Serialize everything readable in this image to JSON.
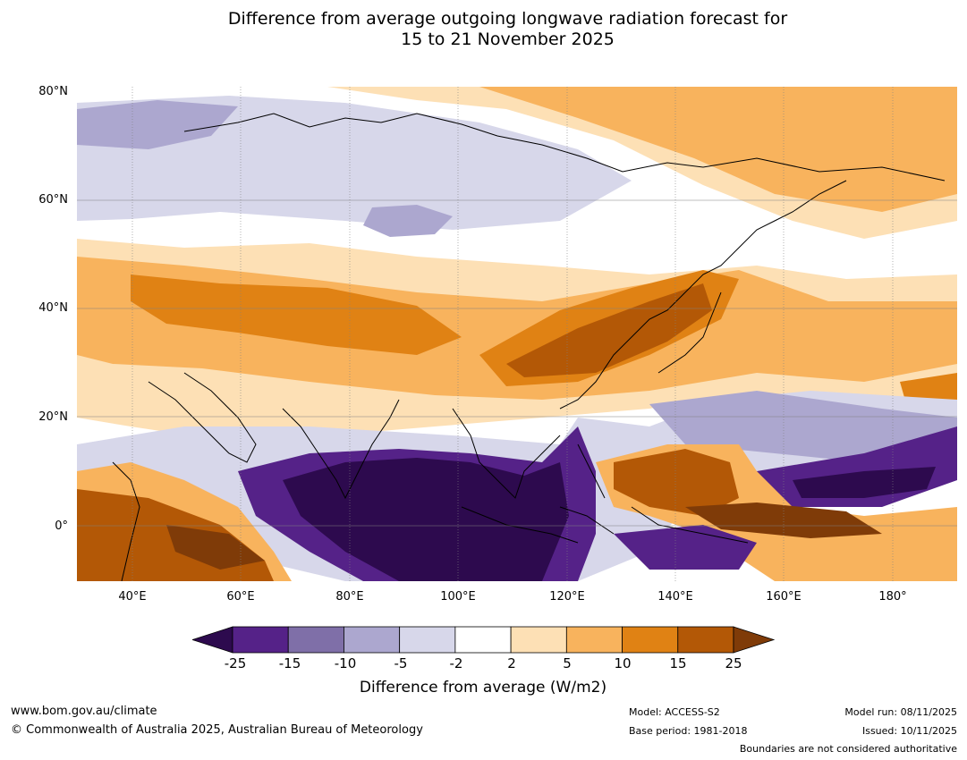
{
  "title": {
    "line1": "Difference from average outgoing longwave radiation forecast for",
    "line2": "15 to 21 November 2025"
  },
  "map": {
    "lat_labels": [
      "80°N",
      "60°N",
      "40°N",
      "20°N",
      "0°"
    ],
    "lon_labels": [
      "40°E",
      "60°E",
      "80°E",
      "100°E",
      "120°E",
      "140°E",
      "160°E",
      "180°"
    ],
    "lat_range": [
      -10,
      80
    ],
    "lon_range": [
      30,
      192
    ]
  },
  "colorbar": {
    "ticks": [
      "-25",
      "-15",
      "-10",
      "-5",
      "-2",
      "2",
      "5",
      "10",
      "15",
      "25"
    ],
    "colors": [
      "#2d0a4e",
      "#552288",
      "#7f6fa8",
      "#aca7cf",
      "#d7d7ea",
      "#ffffff",
      "#fde0b5",
      "#f8b35d",
      "#e08214",
      "#b35806",
      "#7f3b08"
    ],
    "label": "Difference from average (W/m2)"
  },
  "footer": {
    "website": "www.bom.gov.au/climate",
    "copyright": "© Commonwealth of Australia 2025, Australian Bureau of Meteorology",
    "model": "Model: ACCESS-S2",
    "base_period": "Base period: 1981-2018",
    "model_run": "Model run: 08/11/2025",
    "issued": "Issued: 10/11/2025",
    "disclaimer": "Boundaries are not considered authoritative"
  }
}
